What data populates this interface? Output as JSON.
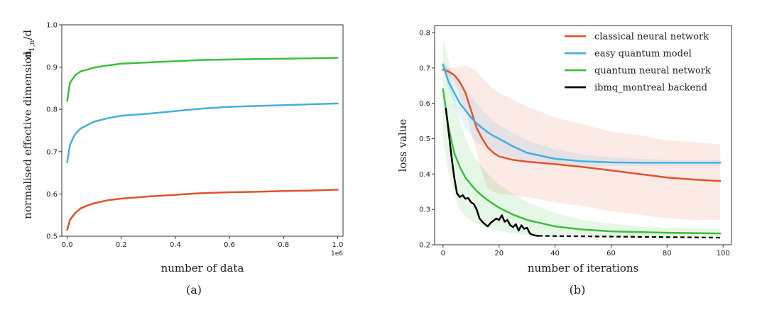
{
  "chart_data": [
    {
      "type": "line",
      "caption": "(a)",
      "title": "",
      "xlabel": "number of data",
      "ylabel": "normalised effective dimension",
      "ylabel_formula": "d",
      "ylabel_formula_sub": "1,n",
      "ylabel_formula_tail": "/d",
      "x_offset_text": "1e6",
      "xlim": [
        -0.02,
        1.02
      ],
      "ylim": [
        0.5,
        1.0
      ],
      "xticks": [
        0.0,
        0.2,
        0.4,
        0.6,
        0.8,
        1.0
      ],
      "xtick_labels": [
        "0.0",
        "0.2",
        "0.4",
        "0.6",
        "0.8",
        "1.0"
      ],
      "yticks": [
        0.5,
        0.6,
        0.7,
        0.8,
        0.9,
        1.0
      ],
      "ytick_labels": [
        "0.5",
        "0.6",
        "0.7",
        "0.8",
        "0.9",
        "1.0"
      ],
      "grid": false,
      "series": [
        {
          "name": "quantum neural network",
          "color": "#3cbf3c",
          "x": [
            0.0,
            0.01,
            0.02,
            0.03,
            0.05,
            0.08,
            0.1,
            0.15,
            0.2,
            0.3,
            0.4,
            0.5,
            0.6,
            0.7,
            0.8,
            0.9,
            1.0
          ],
          "y": [
            0.82,
            0.862,
            0.872,
            0.881,
            0.89,
            0.895,
            0.899,
            0.904,
            0.908,
            0.911,
            0.914,
            0.917,
            0.918,
            0.919,
            0.92,
            0.921,
            0.922
          ]
        },
        {
          "name": "easy quantum model",
          "color": "#44aee3",
          "x": [
            0.0,
            0.01,
            0.02,
            0.03,
            0.05,
            0.08,
            0.1,
            0.15,
            0.2,
            0.3,
            0.4,
            0.5,
            0.6,
            0.7,
            0.8,
            0.9,
            1.0
          ],
          "y": [
            0.675,
            0.715,
            0.73,
            0.742,
            0.755,
            0.765,
            0.771,
            0.779,
            0.785,
            0.79,
            0.796,
            0.802,
            0.806,
            0.808,
            0.81,
            0.812,
            0.814
          ]
        },
        {
          "name": "classical neural network",
          "color": "#e2532a",
          "x": [
            0.0,
            0.01,
            0.02,
            0.03,
            0.05,
            0.08,
            0.1,
            0.15,
            0.2,
            0.3,
            0.4,
            0.5,
            0.6,
            0.7,
            0.8,
            0.9,
            1.0
          ],
          "y": [
            0.515,
            0.538,
            0.547,
            0.555,
            0.566,
            0.574,
            0.578,
            0.585,
            0.589,
            0.594,
            0.598,
            0.602,
            0.604,
            0.605,
            0.607,
            0.608,
            0.61
          ]
        }
      ]
    },
    {
      "type": "line",
      "caption": "(b)",
      "title": "",
      "xlabel": "number of iterations",
      "ylabel": "loss value",
      "xlim": [
        -3,
        103
      ],
      "ylim": [
        0.2,
        0.82
      ],
      "xticks": [
        0,
        20,
        40,
        60,
        80,
        100
      ],
      "xtick_labels": [
        "0",
        "20",
        "40",
        "60",
        "80",
        "100"
      ],
      "yticks": [
        0.2,
        0.3,
        0.4,
        0.5,
        0.6,
        0.7,
        0.8
      ],
      "ytick_labels": [
        "0.2",
        "0.3",
        "0.4",
        "0.5",
        "0.6",
        "0.7",
        "0.8"
      ],
      "grid": false,
      "legend_position": "top-right",
      "series": [
        {
          "name": "classical neural network",
          "color": "#e2532a",
          "x": [
            0,
            2,
            4,
            6,
            8,
            10,
            12,
            14,
            16,
            18,
            20,
            25,
            30,
            40,
            50,
            60,
            70,
            80,
            90,
            99
          ],
          "y": [
            0.695,
            0.69,
            0.68,
            0.66,
            0.63,
            0.58,
            0.53,
            0.5,
            0.475,
            0.46,
            0.45,
            0.44,
            0.435,
            0.428,
            0.42,
            0.41,
            0.4,
            0.39,
            0.384,
            0.38
          ],
          "band_upper": [
            0.7,
            0.7,
            0.7,
            0.705,
            0.705,
            0.7,
            0.69,
            0.67,
            0.655,
            0.64,
            0.63,
            0.61,
            0.59,
            0.56,
            0.54,
            0.52,
            0.51,
            0.495,
            0.49,
            0.485
          ],
          "band_lower": [
            0.69,
            0.68,
            0.66,
            0.62,
            0.58,
            0.52,
            0.46,
            0.4,
            0.36,
            0.35,
            0.345,
            0.34,
            0.335,
            0.32,
            0.31,
            0.295,
            0.285,
            0.275,
            0.27,
            0.27
          ]
        },
        {
          "name": "easy quantum model",
          "color": "#44aee3",
          "x": [
            0,
            2,
            4,
            6,
            8,
            10,
            12,
            14,
            16,
            18,
            20,
            25,
            30,
            40,
            50,
            60,
            70,
            80,
            90,
            99
          ],
          "y": [
            0.71,
            0.66,
            0.63,
            0.6,
            0.58,
            0.56,
            0.543,
            0.53,
            0.518,
            0.508,
            0.5,
            0.478,
            0.46,
            0.443,
            0.436,
            0.433,
            0.432,
            0.432,
            0.432,
            0.432
          ],
          "band_upper": [
            0.72,
            0.7,
            0.68,
            0.66,
            0.64,
            0.62,
            0.6,
            0.58,
            0.565,
            0.55,
            0.54,
            0.515,
            0.495,
            0.47,
            0.455,
            0.447,
            0.443,
            0.44,
            0.44,
            0.44
          ],
          "band_lower": [
            0.7,
            0.64,
            0.6,
            0.56,
            0.53,
            0.51,
            0.49,
            0.48,
            0.47,
            0.465,
            0.46,
            0.445,
            0.435,
            0.425,
            0.423,
            0.423,
            0.423,
            0.423,
            0.423,
            0.423
          ]
        },
        {
          "name": "quantum neural network",
          "color": "#3cbf3c",
          "x": [
            0,
            2,
            4,
            6,
            8,
            10,
            12,
            14,
            16,
            18,
            20,
            25,
            30,
            40,
            50,
            60,
            70,
            80,
            90,
            99
          ],
          "y": [
            0.64,
            0.53,
            0.46,
            0.42,
            0.39,
            0.37,
            0.352,
            0.338,
            0.326,
            0.315,
            0.305,
            0.285,
            0.27,
            0.252,
            0.243,
            0.238,
            0.236,
            0.234,
            0.233,
            0.232
          ],
          "band_upper": [
            0.78,
            0.72,
            0.62,
            0.55,
            0.5,
            0.465,
            0.44,
            0.42,
            0.4,
            0.385,
            0.37,
            0.345,
            0.32,
            0.29,
            0.27,
            0.26,
            0.252,
            0.248,
            0.246,
            0.245
          ],
          "band_lower": [
            0.5,
            0.4,
            0.34,
            0.3,
            0.28,
            0.27,
            0.26,
            0.253,
            0.248,
            0.244,
            0.24,
            0.232,
            0.226,
            0.222,
            0.22,
            0.22,
            0.22,
            0.22,
            0.22,
            0.22
          ]
        },
        {
          "name": "ibmq_montreal backend",
          "color": "#000000",
          "x": [
            1,
            2,
            3,
            4,
            5,
            6,
            7,
            8,
            9,
            10,
            11,
            12,
            13,
            14,
            15,
            16,
            17,
            18,
            19,
            20,
            21,
            22,
            23,
            24,
            25,
            26,
            27,
            28,
            29,
            30,
            31,
            32,
            33,
            34
          ],
          "y": [
            0.585,
            0.52,
            0.45,
            0.39,
            0.345,
            0.335,
            0.34,
            0.33,
            0.332,
            0.32,
            0.315,
            0.3,
            0.275,
            0.265,
            0.258,
            0.252,
            0.262,
            0.268,
            0.274,
            0.27,
            0.283,
            0.265,
            0.27,
            0.255,
            0.25,
            0.258,
            0.24,
            0.255,
            0.245,
            0.248,
            0.232,
            0.228,
            0.226,
            0.225
          ],
          "dashed_x": [
            34,
            99
          ],
          "dashed_y": [
            0.225,
            0.22
          ]
        }
      ]
    }
  ]
}
